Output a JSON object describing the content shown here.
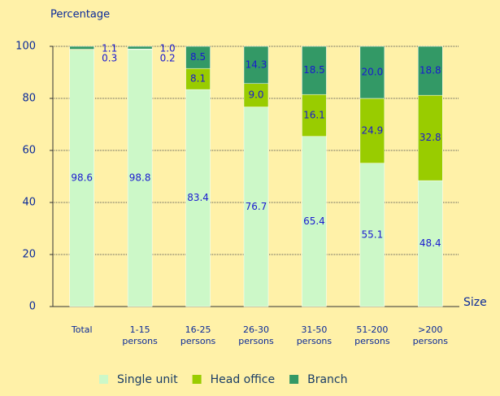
{
  "chart_data": {
    "type": "stacked_bar",
    "y_label": "Percentage",
    "x_label": "Size",
    "categories": [
      "Total",
      "1-15 persons",
      "16-25 persons",
      "26-30 persons",
      "31-50 persons",
      "51-200 persons",
      ">200 persons"
    ],
    "series": [
      {
        "name": "Single unit",
        "color": "#ccf8c8",
        "values": [
          98.6,
          98.8,
          83.4,
          76.7,
          65.4,
          55.1,
          48.4
        ],
        "value_labels": [
          "98.6",
          "98.8",
          "83.4",
          "76.7",
          "65.4",
          "55.1",
          "48.4"
        ]
      },
      {
        "name": "Head office",
        "color": "#99cc00",
        "values": [
          0.3,
          0.2,
          8.1,
          9.0,
          16.1,
          24.9,
          32.8
        ],
        "value_labels": [
          "0.3",
          "0.2",
          "8.1",
          "9.0",
          "16.1",
          "24.9",
          "32.8"
        ]
      },
      {
        "name": "Branch",
        "color": "#339966",
        "values": [
          1.1,
          1.0,
          8.5,
          14.3,
          18.5,
          20.0,
          18.8
        ],
        "value_labels": [
          "1.1",
          "1.0",
          "8.5",
          "14.3",
          "18.5",
          "20.0",
          "18.8"
        ]
      }
    ],
    "ylim": [
      0,
      100
    ],
    "yticks": [
      0,
      20,
      40,
      60,
      80,
      100
    ],
    "grid": true,
    "legend": "bottom"
  }
}
